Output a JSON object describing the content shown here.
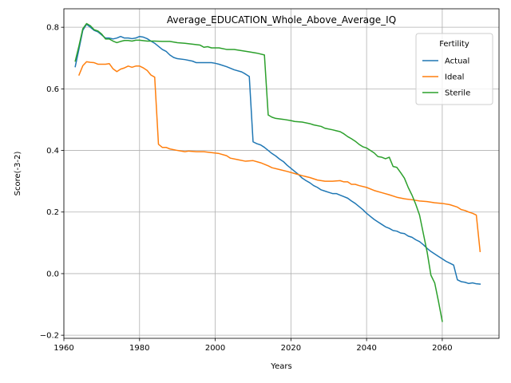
{
  "chart_data": {
    "type": "line",
    "title": "Average_EDUCATION_Whole_Above_Average_IQ",
    "xlabel": "Years",
    "ylabel": "Score(-3-2)",
    "xlim": [
      1960,
      2075
    ],
    "ylim": [
      -0.21,
      0.86
    ],
    "xticks": [
      1960,
      1980,
      2000,
      2020,
      2040,
      2060
    ],
    "yticks": [
      -0.2,
      0.0,
      0.2,
      0.4,
      0.6,
      0.8
    ],
    "xtick_labels": [
      "1960",
      "1980",
      "2000",
      "2020",
      "2040",
      "2060"
    ],
    "ytick_labels": [
      "−0.2",
      "0.0",
      "0.2",
      "0.4",
      "0.6",
      "0.8"
    ],
    "grid": true,
    "legend": {
      "title": "Fertility",
      "placement": "top-right"
    },
    "series": [
      {
        "name": "Actual",
        "color": "#1f77b4",
        "points": [
          [
            1963,
            0.672
          ],
          [
            1964,
            0.73
          ],
          [
            1965,
            0.79
          ],
          [
            1966,
            0.81
          ],
          [
            1967,
            0.8
          ],
          [
            1968,
            0.79
          ],
          [
            1969,
            0.785
          ],
          [
            1970,
            0.775
          ],
          [
            1971,
            0.765
          ],
          [
            1972,
            0.765
          ],
          [
            1973,
            0.762
          ],
          [
            1974,
            0.765
          ],
          [
            1975,
            0.77
          ],
          [
            1976,
            0.765
          ],
          [
            1977,
            0.765
          ],
          [
            1978,
            0.763
          ],
          [
            1979,
            0.765
          ],
          [
            1980,
            0.77
          ],
          [
            1981,
            0.768
          ],
          [
            1982,
            0.763
          ],
          [
            1983,
            0.755
          ],
          [
            1984,
            0.748
          ],
          [
            1985,
            0.738
          ],
          [
            1986,
            0.728
          ],
          [
            1987,
            0.722
          ],
          [
            1988,
            0.71
          ],
          [
            1989,
            0.702
          ],
          [
            1990,
            0.698
          ],
          [
            1992,
            0.695
          ],
          [
            1994,
            0.69
          ],
          [
            1995,
            0.685
          ],
          [
            1997,
            0.685
          ],
          [
            1999,
            0.685
          ],
          [
            2000,
            0.683
          ],
          [
            2001,
            0.68
          ],
          [
            2003,
            0.672
          ],
          [
            2005,
            0.662
          ],
          [
            2007,
            0.655
          ],
          [
            2008,
            0.648
          ],
          [
            2009,
            0.64
          ],
          [
            2010,
            0.428
          ],
          [
            2011,
            0.422
          ],
          [
            2012,
            0.418
          ],
          [
            2013,
            0.41
          ],
          [
            2014,
            0.4
          ],
          [
            2015,
            0.39
          ],
          [
            2016,
            0.382
          ],
          [
            2017,
            0.372
          ],
          [
            2018,
            0.364
          ],
          [
            2019,
            0.352
          ],
          [
            2020,
            0.342
          ],
          [
            2021,
            0.332
          ],
          [
            2022,
            0.322
          ],
          [
            2023,
            0.31
          ],
          [
            2024,
            0.302
          ],
          [
            2025,
            0.295
          ],
          [
            2026,
            0.286
          ],
          [
            2027,
            0.28
          ],
          [
            2028,
            0.272
          ],
          [
            2029,
            0.268
          ],
          [
            2030,
            0.264
          ],
          [
            2031,
            0.26
          ],
          [
            2032,
            0.26
          ],
          [
            2033,
            0.255
          ],
          [
            2034,
            0.25
          ],
          [
            2035,
            0.245
          ],
          [
            2036,
            0.236
          ],
          [
            2037,
            0.228
          ],
          [
            2038,
            0.218
          ],
          [
            2039,
            0.208
          ],
          [
            2040,
            0.196
          ],
          [
            2041,
            0.186
          ],
          [
            2042,
            0.176
          ],
          [
            2043,
            0.168
          ],
          [
            2044,
            0.16
          ],
          [
            2045,
            0.152
          ],
          [
            2046,
            0.147
          ],
          [
            2047,
            0.14
          ],
          [
            2048,
            0.138
          ],
          [
            2049,
            0.132
          ],
          [
            2050,
            0.13
          ],
          [
            2051,
            0.122
          ],
          [
            2052,
            0.118
          ],
          [
            2053,
            0.11
          ],
          [
            2054,
            0.104
          ],
          [
            2055,
            0.094
          ],
          [
            2056,
            0.082
          ],
          [
            2057,
            0.072
          ],
          [
            2058,
            0.064
          ],
          [
            2059,
            0.056
          ],
          [
            2060,
            0.048
          ],
          [
            2061,
            0.04
          ],
          [
            2062,
            0.034
          ],
          [
            2063,
            0.028
          ],
          [
            2064,
            -0.02
          ],
          [
            2065,
            -0.026
          ],
          [
            2066,
            -0.028
          ],
          [
            2067,
            -0.032
          ],
          [
            2068,
            -0.03
          ],
          [
            2069,
            -0.033
          ],
          [
            2070,
            -0.034
          ]
        ]
      },
      {
        "name": "Ideal",
        "color": "#ff7f0e",
        "points": [
          [
            1964,
            0.645
          ],
          [
            1965,
            0.675
          ],
          [
            1966,
            0.688
          ],
          [
            1967,
            0.686
          ],
          [
            1968,
            0.685
          ],
          [
            1969,
            0.68
          ],
          [
            1970,
            0.68
          ],
          [
            1971,
            0.68
          ],
          [
            1972,
            0.682
          ],
          [
            1973,
            0.665
          ],
          [
            1974,
            0.656
          ],
          [
            1975,
            0.664
          ],
          [
            1976,
            0.668
          ],
          [
            1977,
            0.674
          ],
          [
            1978,
            0.67
          ],
          [
            1979,
            0.674
          ],
          [
            1980,
            0.674
          ],
          [
            1981,
            0.668
          ],
          [
            1982,
            0.66
          ],
          [
            1983,
            0.645
          ],
          [
            1984,
            0.638
          ],
          [
            1985,
            0.42
          ],
          [
            1986,
            0.41
          ],
          [
            1987,
            0.41
          ],
          [
            1988,
            0.405
          ],
          [
            1990,
            0.4
          ],
          [
            1992,
            0.396
          ],
          [
            1993,
            0.398
          ],
          [
            1995,
            0.396
          ],
          [
            1997,
            0.396
          ],
          [
            1999,
            0.393
          ],
          [
            2001,
            0.39
          ],
          [
            2003,
            0.383
          ],
          [
            2004,
            0.375
          ],
          [
            2006,
            0.37
          ],
          [
            2008,
            0.365
          ],
          [
            2010,
            0.367
          ],
          [
            2012,
            0.36
          ],
          [
            2014,
            0.35
          ],
          [
            2015,
            0.344
          ],
          [
            2017,
            0.338
          ],
          [
            2019,
            0.332
          ],
          [
            2021,
            0.325
          ],
          [
            2023,
            0.318
          ],
          [
            2025,
            0.312
          ],
          [
            2027,
            0.304
          ],
          [
            2029,
            0.3
          ],
          [
            2031,
            0.3
          ],
          [
            2033,
            0.302
          ],
          [
            2034,
            0.298
          ],
          [
            2035,
            0.298
          ],
          [
            2036,
            0.29
          ],
          [
            2037,
            0.29
          ],
          [
            2038,
            0.286
          ],
          [
            2040,
            0.28
          ],
          [
            2042,
            0.27
          ],
          [
            2044,
            0.263
          ],
          [
            2046,
            0.256
          ],
          [
            2048,
            0.248
          ],
          [
            2050,
            0.243
          ],
          [
            2052,
            0.24
          ],
          [
            2054,
            0.236
          ],
          [
            2056,
            0.234
          ],
          [
            2058,
            0.23
          ],
          [
            2060,
            0.228
          ],
          [
            2062,
            0.224
          ],
          [
            2064,
            0.216
          ],
          [
            2065,
            0.208
          ],
          [
            2066,
            0.205
          ],
          [
            2067,
            0.2
          ],
          [
            2068,
            0.196
          ],
          [
            2069,
            0.19
          ],
          [
            2070,
            0.072
          ]
        ]
      },
      {
        "name": "Sterile",
        "color": "#2ca02c",
        "points": [
          [
            1963,
            0.69
          ],
          [
            1964,
            0.74
          ],
          [
            1965,
            0.795
          ],
          [
            1966,
            0.812
          ],
          [
            1967,
            0.805
          ],
          [
            1968,
            0.792
          ],
          [
            1969,
            0.788
          ],
          [
            1970,
            0.778
          ],
          [
            1971,
            0.762
          ],
          [
            1972,
            0.762
          ],
          [
            1973,
            0.755
          ],
          [
            1974,
            0.75
          ],
          [
            1975,
            0.754
          ],
          [
            1976,
            0.757
          ],
          [
            1977,
            0.757
          ],
          [
            1978,
            0.755
          ],
          [
            1979,
            0.758
          ],
          [
            1980,
            0.758
          ],
          [
            1982,
            0.755
          ],
          [
            1984,
            0.755
          ],
          [
            1986,
            0.754
          ],
          [
            1988,
            0.754
          ],
          [
            1990,
            0.75
          ],
          [
            1992,
            0.748
          ],
          [
            1994,
            0.745
          ],
          [
            1996,
            0.742
          ],
          [
            1997,
            0.735
          ],
          [
            1998,
            0.737
          ],
          [
            1999,
            0.733
          ],
          [
            2001,
            0.733
          ],
          [
            2003,
            0.728
          ],
          [
            2005,
            0.728
          ],
          [
            2007,
            0.724
          ],
          [
            2009,
            0.72
          ],
          [
            2011,
            0.716
          ],
          [
            2013,
            0.71
          ],
          [
            2014,
            0.515
          ],
          [
            2015,
            0.508
          ],
          [
            2016,
            0.504
          ],
          [
            2018,
            0.501
          ],
          [
            2020,
            0.497
          ],
          [
            2021,
            0.494
          ],
          [
            2023,
            0.492
          ],
          [
            2025,
            0.487
          ],
          [
            2026,
            0.483
          ],
          [
            2028,
            0.478
          ],
          [
            2029,
            0.472
          ],
          [
            2031,
            0.467
          ],
          [
            2032,
            0.464
          ],
          [
            2033,
            0.461
          ],
          [
            2034,
            0.454
          ],
          [
            2035,
            0.445
          ],
          [
            2036,
            0.438
          ],
          [
            2037,
            0.43
          ],
          [
            2038,
            0.42
          ],
          [
            2039,
            0.412
          ],
          [
            2040,
            0.408
          ],
          [
            2041,
            0.4
          ],
          [
            2042,
            0.392
          ],
          [
            2043,
            0.38
          ],
          [
            2044,
            0.378
          ],
          [
            2045,
            0.373
          ],
          [
            2046,
            0.378
          ],
          [
            2047,
            0.348
          ],
          [
            2048,
            0.345
          ],
          [
            2049,
            0.328
          ],
          [
            2050,
            0.31
          ],
          [
            2051,
            0.28
          ],
          [
            2052,
            0.255
          ],
          [
            2053,
            0.225
          ],
          [
            2054,
            0.19
          ],
          [
            2055,
            0.13
          ],
          [
            2056,
            0.07
          ],
          [
            2057,
            -0.005
          ],
          [
            2058,
            -0.03
          ],
          [
            2059,
            -0.09
          ],
          [
            2060,
            -0.155
          ]
        ]
      }
    ]
  }
}
